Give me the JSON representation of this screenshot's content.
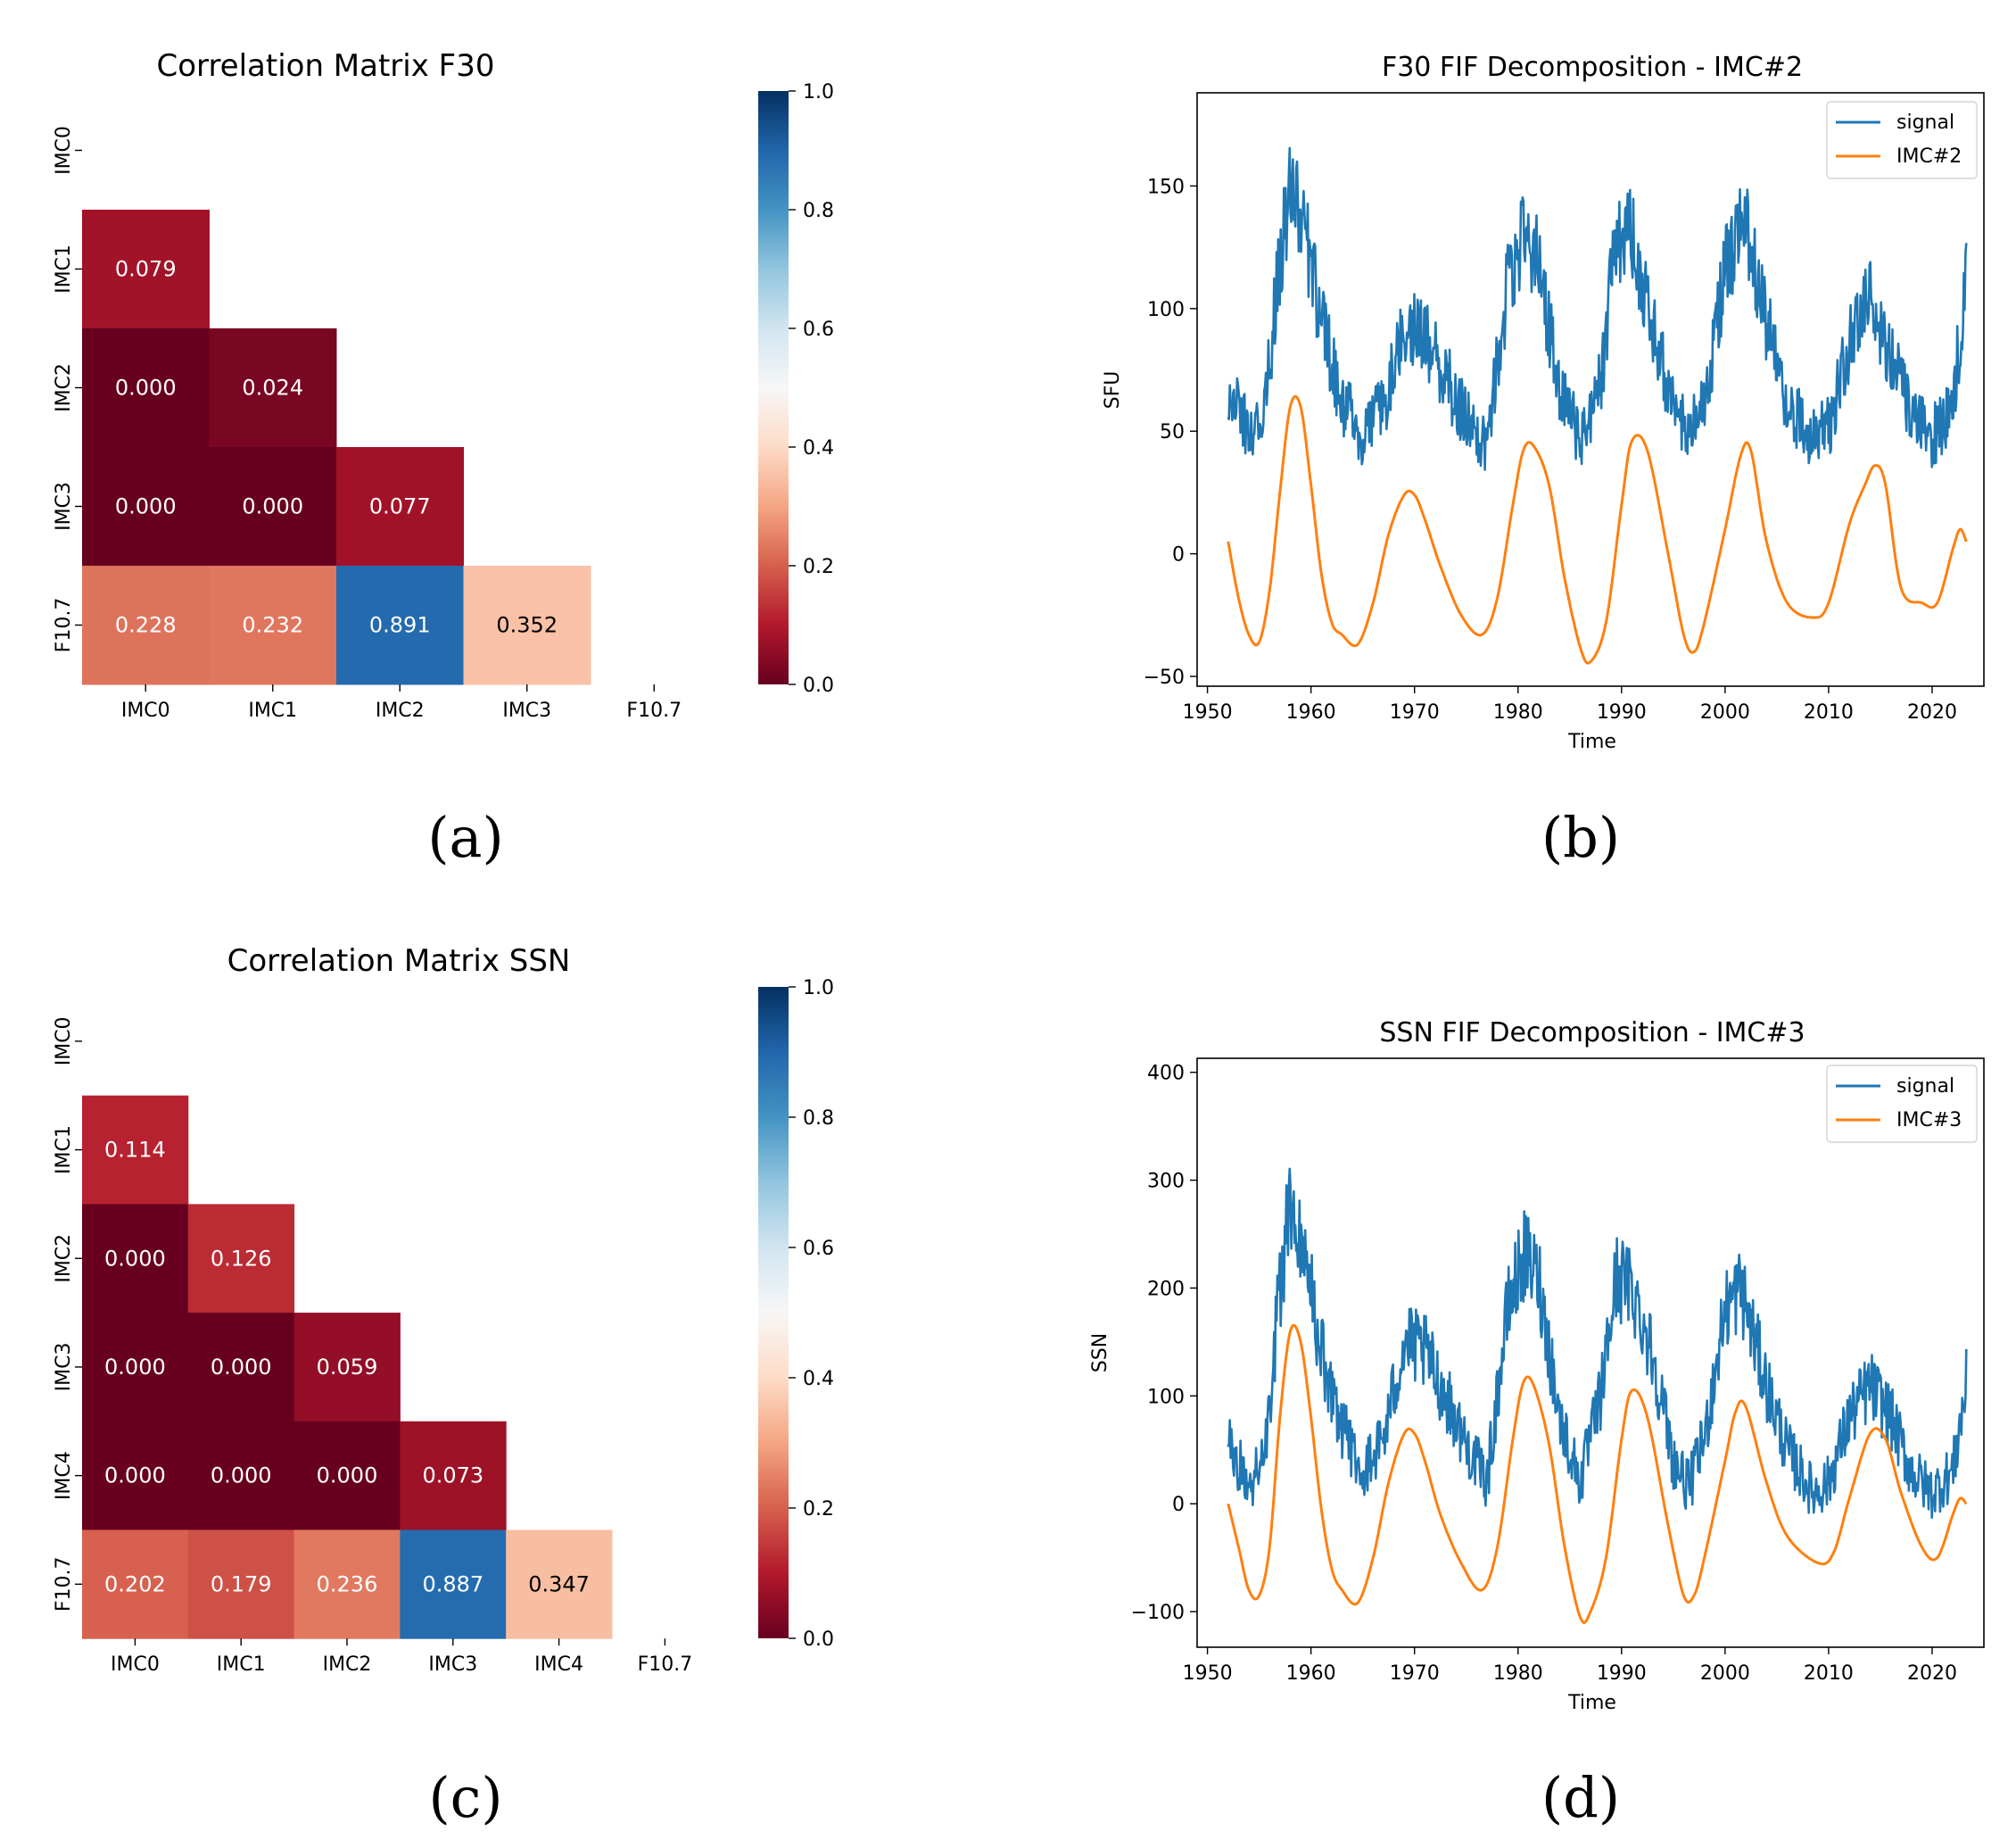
{
  "colorbar_ticks": [
    "0.0",
    "0.2",
    "0.4",
    "0.6",
    "0.8",
    "1.0"
  ],
  "colors": {
    "signal": "#1f77b4",
    "imc": "#ff7f0e"
  },
  "panels": {
    "a": "(a)",
    "b": "(b)",
    "c": "(c)",
    "d": "(d)"
  },
  "chart_data": [
    {
      "id": "a",
      "type": "heatmap",
      "title": "Correlation Matrix F30",
      "labels": [
        "IMC0",
        "IMC1",
        "IMC2",
        "IMC3",
        "F10.7"
      ],
      "cells": [
        {
          "row": 1,
          "col": 0,
          "value": 0.079,
          "label": "0.079"
        },
        {
          "row": 2,
          "col": 0,
          "value": 0.0,
          "label": "0.000"
        },
        {
          "row": 2,
          "col": 1,
          "value": 0.024,
          "label": "0.024"
        },
        {
          "row": 3,
          "col": 0,
          "value": 0.0,
          "label": "0.000"
        },
        {
          "row": 3,
          "col": 1,
          "value": 0.0,
          "label": "0.000"
        },
        {
          "row": 3,
          "col": 2,
          "value": 0.077,
          "label": "0.077"
        },
        {
          "row": 4,
          "col": 0,
          "value": 0.228,
          "label": "0.228"
        },
        {
          "row": 4,
          "col": 1,
          "value": 0.232,
          "label": "0.232"
        },
        {
          "row": 4,
          "col": 2,
          "value": 0.891,
          "label": "0.891"
        },
        {
          "row": 4,
          "col": 3,
          "value": 0.352,
          "label": "0.352"
        }
      ],
      "vmin": 0,
      "vmax": 1
    },
    {
      "id": "b",
      "type": "line",
      "title": "F30 FIF Decomposition - IMC#2",
      "xlabel": "Time",
      "ylabel": "SFU",
      "xlim": [
        1949,
        2025
      ],
      "ylim": [
        -54,
        188
      ],
      "xticks": [
        1950,
        1960,
        1970,
        1980,
        1990,
        2000,
        2010,
        2020
      ],
      "yticks": [
        -50,
        0,
        50,
        100,
        150
      ],
      "ytick_labels": [
        "−50",
        "0",
        "50",
        "100",
        "150"
      ],
      "series": [
        {
          "name": "signal",
          "noise": 12,
          "x": [
            1952,
            1954,
            1955.5,
            1957,
            1958,
            1959,
            1961,
            1963,
            1965,
            1967,
            1969,
            1971,
            1973,
            1975,
            1977,
            1979,
            1980.5,
            1982,
            1984,
            1986,
            1988,
            1989.5,
            1991,
            1993,
            1995,
            1996.5,
            1998,
            2000,
            2002,
            2004,
            2006,
            2008.5,
            2010,
            2012,
            2014,
            2016,
            2018,
            2020,
            2022,
            2023.3
          ],
          "y": [
            65,
            50,
            58,
            120,
            150,
            140,
            95,
            62,
            48,
            60,
            95,
            88,
            72,
            55,
            45,
            110,
            130,
            120,
            65,
            47,
            70,
            130,
            130,
            95,
            58,
            48,
            62,
            115,
            135,
            95,
            60,
            47,
            52,
            85,
            105,
            82,
            55,
            47,
            60,
            115
          ]
        },
        {
          "name": "IMC#2",
          "noise": 0,
          "x": [
            1952,
            1953,
            1954,
            1955,
            1956,
            1957,
            1958,
            1959,
            1960,
            1961,
            1962,
            1963,
            1964.5,
            1966,
            1967.5,
            1969,
            1970,
            1971,
            1972.5,
            1974.5,
            1976.5,
            1978,
            1979.5,
            1980.5,
            1981.5,
            1983,
            1984.5,
            1986,
            1987,
            1988.5,
            1990,
            1991,
            1992.5,
            1994.5,
            1996,
            1997,
            1998,
            2000,
            2001.5,
            2002.5,
            2004,
            2006,
            2008.5,
            2010,
            2012,
            2013.5,
            2014.5,
            2015.5,
            2017,
            2019,
            2020.5,
            2022,
            2022.7,
            2023.3
          ],
          "y": [
            5,
            -18,
            -33,
            -36,
            -15,
            25,
            60,
            60,
            28,
            -8,
            -28,
            -33,
            -37,
            -20,
            8,
            24,
            24,
            14,
            -5,
            -25,
            -33,
            -18,
            20,
            42,
            44,
            28,
            -10,
            -38,
            -44,
            -28,
            20,
            46,
            42,
            0,
            -33,
            -40,
            -28,
            10,
            40,
            42,
            5,
            -20,
            -26,
            -20,
            12,
            28,
            36,
            28,
            -14,
            -20,
            -20,
            2,
            10,
            5
          ]
        }
      ]
    },
    {
      "id": "c",
      "type": "heatmap",
      "title": "Correlation Matrix SSN",
      "labels": [
        "IMC0",
        "IMC1",
        "IMC2",
        "IMC3",
        "IMC4",
        "F10.7"
      ],
      "cells": [
        {
          "row": 1,
          "col": 0,
          "value": 0.114,
          "label": "0.114"
        },
        {
          "row": 2,
          "col": 0,
          "value": 0.0,
          "label": "0.000"
        },
        {
          "row": 2,
          "col": 1,
          "value": 0.126,
          "label": "0.126"
        },
        {
          "row": 3,
          "col": 0,
          "value": 0.0,
          "label": "0.000"
        },
        {
          "row": 3,
          "col": 1,
          "value": 0.0,
          "label": "0.000"
        },
        {
          "row": 3,
          "col": 2,
          "value": 0.059,
          "label": "0.059"
        },
        {
          "row": 4,
          "col": 0,
          "value": 0.0,
          "label": "0.000"
        },
        {
          "row": 4,
          "col": 1,
          "value": 0.0,
          "label": "0.000"
        },
        {
          "row": 4,
          "col": 2,
          "value": 0.0,
          "label": "0.000"
        },
        {
          "row": 4,
          "col": 3,
          "value": 0.073,
          "label": "0.073"
        },
        {
          "row": 5,
          "col": 0,
          "value": 0.202,
          "label": "0.202"
        },
        {
          "row": 5,
          "col": 1,
          "value": 0.179,
          "label": "0.179"
        },
        {
          "row": 5,
          "col": 2,
          "value": 0.236,
          "label": "0.236"
        },
        {
          "row": 5,
          "col": 3,
          "value": 0.887,
          "label": "0.887"
        },
        {
          "row": 5,
          "col": 4,
          "value": 0.347,
          "label": "0.347"
        }
      ],
      "vmin": 0,
      "vmax": 1
    },
    {
      "id": "d",
      "type": "line",
      "title": "SSN FIF Decomposition - IMC#3",
      "xlabel": "Time",
      "ylabel": "SSN",
      "xlim": [
        1949,
        2025
      ],
      "ylim": [
        -133,
        413
      ],
      "xticks": [
        1950,
        1960,
        1970,
        1980,
        1990,
        2000,
        2010,
        2020
      ],
      "yticks": [
        -100,
        0,
        100,
        200,
        300,
        400
      ],
      "ytick_labels": [
        "−100",
        "0",
        "100",
        "200",
        "300",
        "400"
      ],
      "series": [
        {
          "name": "signal",
          "noise": 30,
          "x": [
            1952,
            1954,
            1955.5,
            1957,
            1958,
            1959,
            1961,
            1963,
            1965,
            1967,
            1969,
            1971,
            1973,
            1975,
            1977,
            1979,
            1980.5,
            1982,
            1984,
            1986,
            1988,
            1989.5,
            1991,
            1993,
            1995,
            1996.5,
            1998,
            2000,
            2001.5,
            2004,
            2006,
            2008.5,
            2010,
            2012,
            2014,
            2016,
            2018,
            2020,
            2022,
            2023.3
          ],
          "y": [
            60,
            15,
            40,
            200,
            280,
            250,
            140,
            70,
            30,
            60,
            150,
            140,
            100,
            55,
            20,
            180,
            230,
            210,
            80,
            20,
            100,
            210,
            200,
            140,
            40,
            15,
            60,
            180,
            200,
            110,
            50,
            10,
            20,
            80,
            110,
            80,
            30,
            10,
            30,
            110
          ]
        },
        {
          "name": "IMC#3",
          "noise": 0,
          "x": [
            1952,
            1953,
            1954,
            1955,
            1956,
            1957,
            1958,
            1959,
            1960,
            1961,
            1962,
            1963,
            1964.5,
            1966,
            1967.5,
            1969,
            1970,
            1971,
            1972.5,
            1974.5,
            1976.5,
            1978,
            1979.5,
            1980.5,
            1981.5,
            1983,
            1984.5,
            1986,
            1987,
            1988.5,
            1990,
            1991,
            1992.5,
            1994.5,
            1996,
            1997,
            1998,
            2000,
            2001,
            2002,
            2004,
            2006,
            2009,
            2010.5,
            2012,
            2014,
            2015.5,
            2017,
            2019,
            2020.5,
            2022,
            2022.7,
            2023.3
          ],
          "y": [
            0,
            -40,
            -80,
            -85,
            -40,
            80,
            160,
            150,
            80,
            -5,
            -60,
            -80,
            -92,
            -50,
            20,
            65,
            65,
            40,
            -10,
            -55,
            -80,
            -40,
            60,
            112,
            110,
            55,
            -40,
            -105,
            -100,
            -50,
            60,
            105,
            80,
            -20,
            -85,
            -85,
            -50,
            40,
            85,
            90,
            20,
            -30,
            -55,
            -45,
            5,
            65,
            60,
            10,
            -40,
            -50,
            -10,
            5,
            0
          ]
        }
      ]
    }
  ]
}
